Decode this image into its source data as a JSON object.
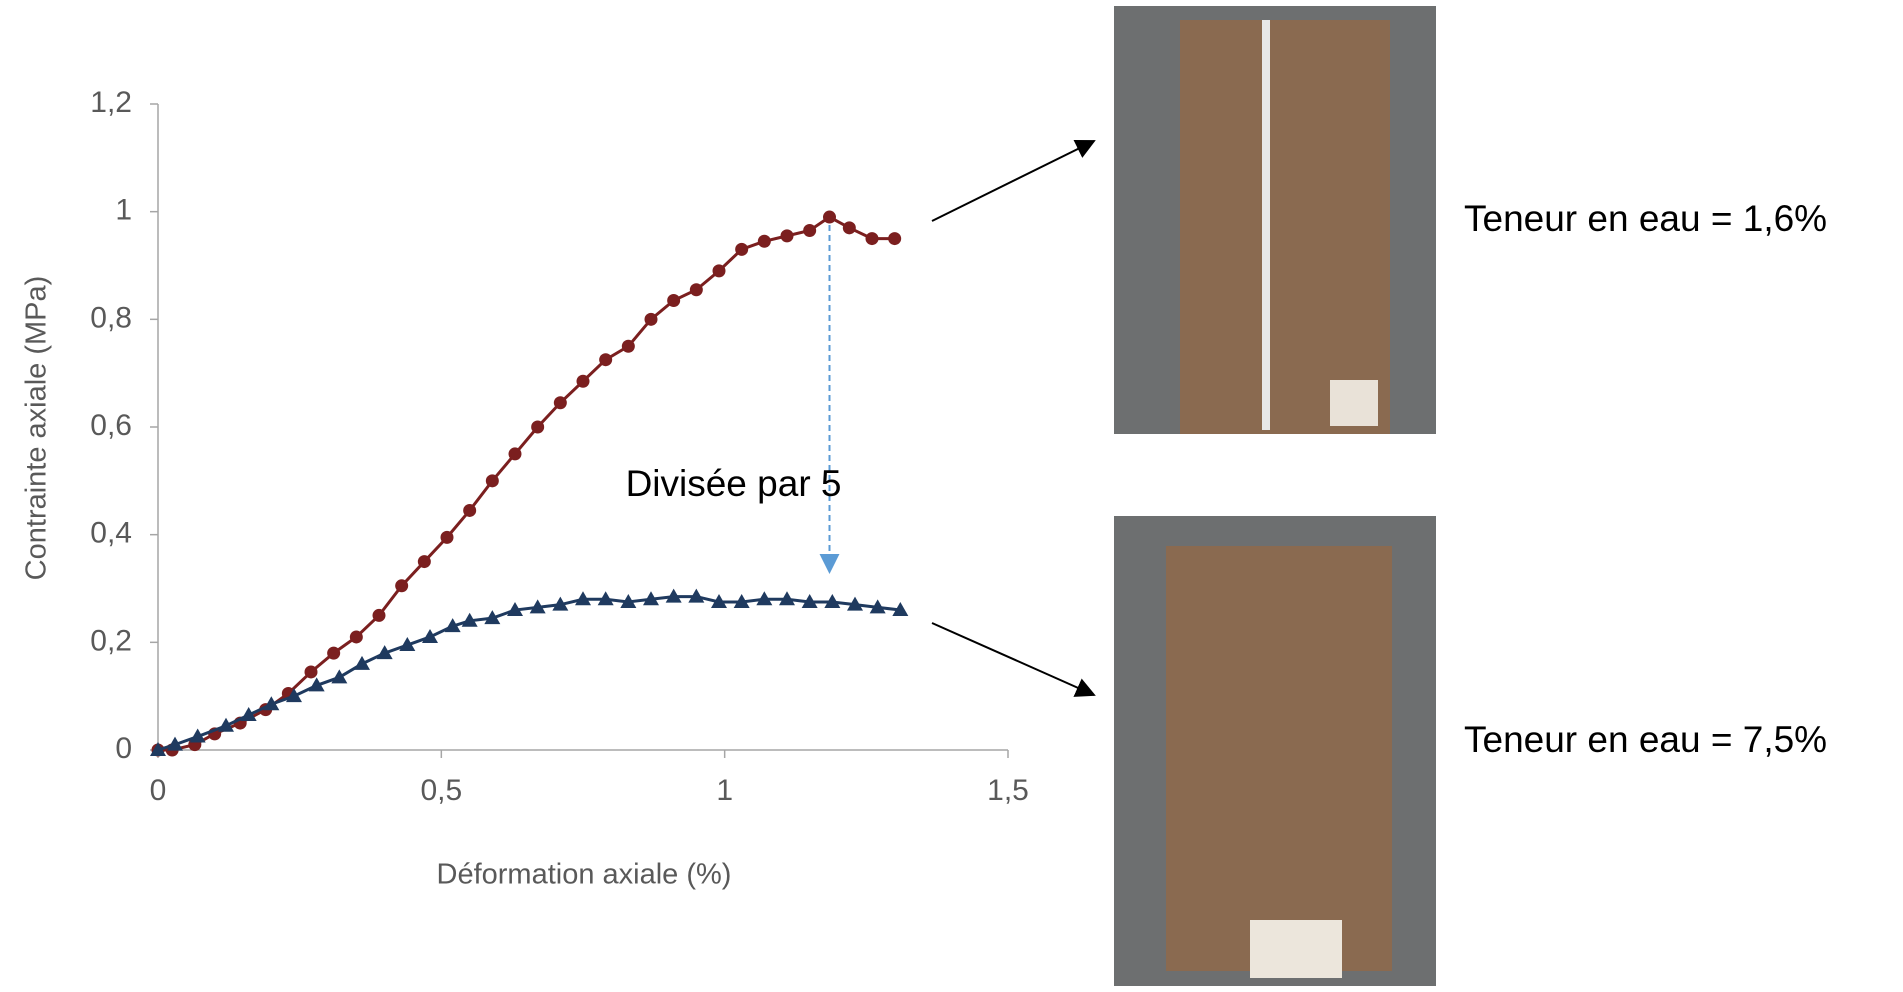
{
  "chart_data": {
    "type": "line",
    "xlabel": "Déformation axiale (%)",
    "ylabel": "Contrainte axiale (MPa)",
    "xlim": [
      0,
      1.5
    ],
    "xticks": [
      0,
      {
        "value": 0.5,
        "label": "0,5"
      },
      1,
      {
        "value": 1.5,
        "label": "1,5"
      }
    ],
    "ylim": [
      0,
      1.2
    ],
    "yticks": [
      0,
      {
        "value": 0.2,
        "label": "0,2"
      },
      {
        "value": 0.4,
        "label": "0,4"
      },
      {
        "value": 0.6,
        "label": "0,6"
      },
      {
        "value": 0.8,
        "label": "0,8"
      },
      1,
      {
        "value": 1.2,
        "label": "1,2"
      }
    ],
    "grid": false,
    "series": [
      {
        "color": "#7b1f1f",
        "marker": "circle",
        "x": [
          0,
          0.025,
          0.065,
          0.1,
          0.145,
          0.19,
          0.23,
          0.27,
          0.31,
          0.35,
          0.39,
          0.43,
          0.47,
          0.51,
          0.55,
          0.59,
          0.63,
          0.67,
          0.71,
          0.75,
          0.79,
          0.83,
          0.87,
          0.91,
          0.95,
          0.99,
          1.03,
          1.07,
          1.11,
          1.15,
          1.185,
          1.22,
          1.26,
          1.3
        ],
        "values": [
          0,
          0,
          0.01,
          0.03,
          0.05,
          0.075,
          0.105,
          0.145,
          0.18,
          0.21,
          0.25,
          0.305,
          0.35,
          0.395,
          0.445,
          0.5,
          0.55,
          0.6,
          0.645,
          0.685,
          0.725,
          0.75,
          0.8,
          0.835,
          0.855,
          0.89,
          0.93,
          0.945,
          0.955,
          0.965,
          0.99,
          0.97,
          0.95,
          0.95
        ]
      },
      {
        "color": "#1f3a5f",
        "marker": "triangle",
        "x": [
          0,
          0.03,
          0.07,
          0.12,
          0.16,
          0.2,
          0.24,
          0.28,
          0.32,
          0.36,
          0.4,
          0.44,
          0.48,
          0.52,
          0.55,
          0.59,
          0.63,
          0.67,
          0.71,
          0.75,
          0.79,
          0.83,
          0.87,
          0.91,
          0.95,
          0.99,
          1.03,
          1.07,
          1.11,
          1.15,
          1.19,
          1.23,
          1.27,
          1.31
        ],
        "values": [
          0,
          0.01,
          0.025,
          0.045,
          0.065,
          0.085,
          0.1,
          0.12,
          0.135,
          0.16,
          0.18,
          0.195,
          0.21,
          0.23,
          0.24,
          0.245,
          0.26,
          0.265,
          0.27,
          0.28,
          0.28,
          0.275,
          0.28,
          0.285,
          0.285,
          0.275,
          0.275,
          0.28,
          0.28,
          0.275,
          0.275,
          0.27,
          0.265,
          0.26
        ]
      }
    ],
    "annotations": [
      "Divisée par 5",
      "Teneur en eau = 1,6%",
      "Teneur en eau = 7,5%"
    ]
  }
}
